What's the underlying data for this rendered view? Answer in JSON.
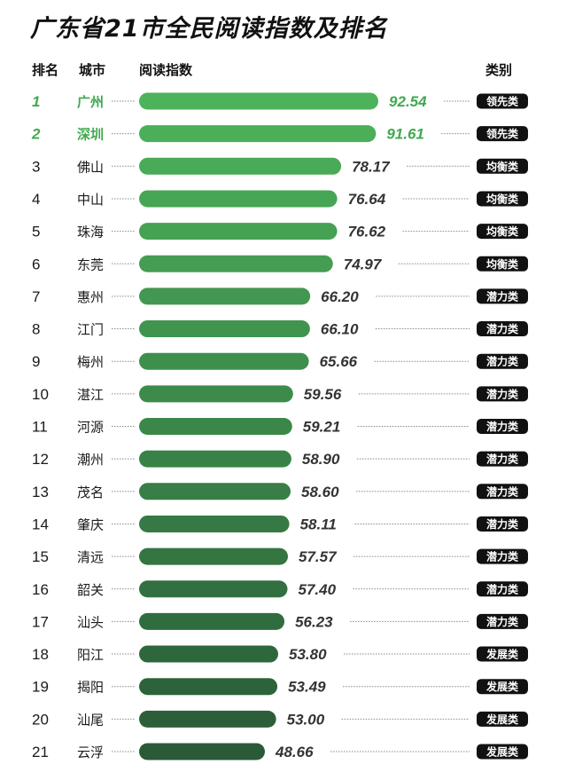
{
  "title": "广东省21市全民阅读指数及排名",
  "headers": {
    "rank": "排名",
    "city": "城市",
    "index": "阅读指数",
    "category": "类别"
  },
  "colors": {
    "highlight": "#3fa94f",
    "bar_top": "#4cb35a",
    "bar_bottom": "#2a5a38",
    "badge": "#111111",
    "dots": "#888888"
  },
  "chart_data": {
    "type": "bar",
    "orientation": "horizontal",
    "title": "广东省21市全民阅读指数及排名",
    "xlim": [
      0,
      100
    ],
    "ranks": [
      "1",
      "2",
      "3",
      "4",
      "5",
      "6",
      "7",
      "8",
      "9",
      "10",
      "11",
      "12",
      "13",
      "14",
      "15",
      "16",
      "17",
      "18",
      "19",
      "20",
      "21"
    ],
    "categories": [
      "广州",
      "深圳",
      "佛山",
      "中山",
      "珠海",
      "东莞",
      "惠州",
      "江门",
      "梅州",
      "湛江",
      "河源",
      "潮州",
      "茂名",
      "肇庆",
      "清远",
      "韶关",
      "汕头",
      "阳江",
      "揭阳",
      "汕尾",
      "云浮"
    ],
    "values": [
      92.54,
      91.61,
      78.17,
      76.64,
      76.62,
      74.97,
      66.2,
      66.1,
      65.66,
      59.56,
      59.21,
      58.9,
      58.6,
      58.11,
      57.57,
      57.4,
      56.23,
      53.8,
      53.49,
      53.0,
      48.66
    ],
    "value_labels": [
      "92.54",
      "91.61",
      "78.17",
      "76.64",
      "76.62",
      "74.97",
      "66.20",
      "66.10",
      "65.66",
      "59.56",
      "59.21",
      "58.90",
      "58.60",
      "58.11",
      "57.57",
      "57.40",
      "56.23",
      "53.80",
      "53.49",
      "53.00",
      "48.66"
    ],
    "types": [
      "领先类",
      "领先类",
      "均衡类",
      "均衡类",
      "均衡类",
      "均衡类",
      "潜力类",
      "潜力类",
      "潜力类",
      "潜力类",
      "潜力类",
      "潜力类",
      "潜力类",
      "潜力类",
      "潜力类",
      "潜力类",
      "潜力类",
      "发展类",
      "发展类",
      "发展类",
      "发展类"
    ]
  }
}
